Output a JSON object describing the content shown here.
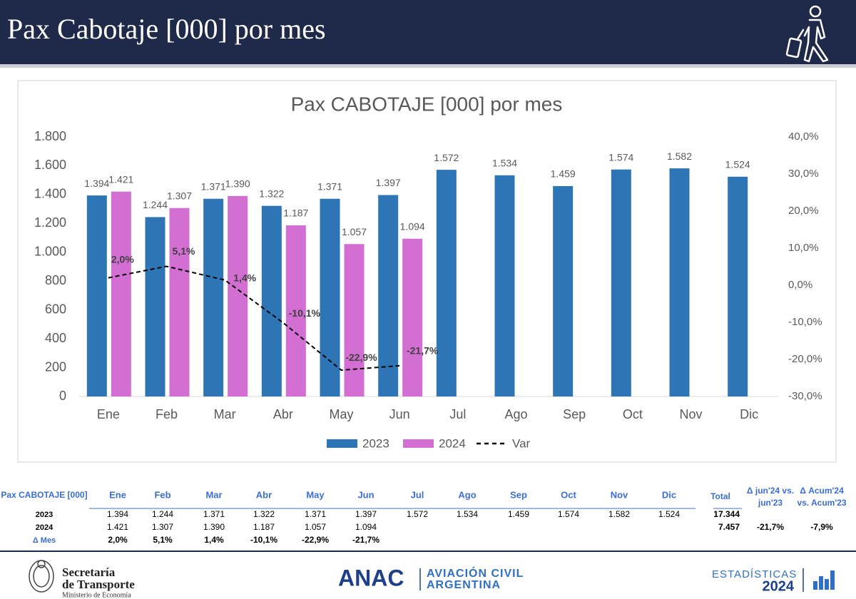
{
  "header": {
    "title": "Pax Cabotaje [000] por mes"
  },
  "chart_data": {
    "type": "bar",
    "title": "Pax CABOTAJE [000] por mes",
    "categories": [
      "Ene",
      "Feb",
      "Mar",
      "Abr",
      "May",
      "Jun",
      "Jul",
      "Ago",
      "Sep",
      "Oct",
      "Nov",
      "Dic"
    ],
    "series": [
      {
        "name": "2023",
        "color": "#2e75b6",
        "values": [
          1394,
          1244,
          1371,
          1322,
          1371,
          1397,
          1572,
          1534,
          1459,
          1574,
          1582,
          1524
        ],
        "value_labels": [
          "1.394",
          "1.244",
          "1.371",
          "1.322",
          "1.371",
          "1.397",
          "1.572",
          "1.534",
          "1.459",
          "1.574",
          "1.582",
          "1.524"
        ]
      },
      {
        "name": "2024",
        "color": "#d36fd3",
        "values": [
          1421,
          1307,
          1390,
          1187,
          1057,
          1094,
          null,
          null,
          null,
          null,
          null,
          null
        ],
        "value_labels": [
          "1.421",
          "1.307",
          "1.390",
          "1.187",
          "1.057",
          "1.094",
          null,
          null,
          null,
          null,
          null,
          null
        ]
      },
      {
        "name": "Var",
        "type": "line",
        "axis": "y2",
        "color": "#000000",
        "line_style": "dashed",
        "values": [
          2.0,
          5.1,
          1.4,
          -10.1,
          -22.9,
          -21.7,
          null,
          null,
          null,
          null,
          null,
          null
        ],
        "value_labels": [
          "2,0%",
          "5,1%",
          "1,4%",
          "-10,1%",
          "-22,9%",
          "-21,7%",
          null,
          null,
          null,
          null,
          null,
          null
        ]
      }
    ],
    "ylim": [
      0,
      1800
    ],
    "yticks": [
      0,
      200,
      400,
      600,
      800,
      {
        "value": 1000,
        "label": "1.000"
      },
      {
        "value": 1200,
        "label": "1.200"
      },
      {
        "value": 1400,
        "label": "1.400"
      },
      {
        "value": 1600,
        "label": "1.600"
      },
      {
        "value": 1800,
        "label": "1.800"
      }
    ],
    "y2lim": [
      -30,
      40
    ],
    "y2ticks": [
      {
        "value": -30,
        "label": "-30,0%"
      },
      {
        "value": -20,
        "label": "-20,0%"
      },
      {
        "value": -10,
        "label": "-10,0%"
      },
      {
        "value": 0,
        "label": "0,0%"
      },
      {
        "value": 10,
        "label": "10,0%"
      },
      {
        "value": 20,
        "label": "20,0%"
      },
      {
        "value": 30,
        "label": "30,0%"
      },
      {
        "value": 40,
        "label": "40,0%"
      }
    ],
    "grid": false,
    "legend": "bottom"
  },
  "table": {
    "corner": "Pax CABOTAJE [000]",
    "months": [
      "Ene",
      "Feb",
      "Mar",
      "Abr",
      "May",
      "Jun",
      "Jul",
      "Ago",
      "Sep",
      "Oct",
      "Nov",
      "Dic"
    ],
    "total": "Total",
    "delta_month": [
      "Δ jun'24 vs.",
      "jun'23"
    ],
    "delta_accum": [
      "Δ Acum'24",
      "vs. Acum'23"
    ],
    "rows": [
      {
        "label": "2023",
        "cells": [
          "1.394",
          "1.244",
          "1.371",
          "1.322",
          "1.371",
          "1.397",
          "1.572",
          "1.534",
          "1.459",
          "1.574",
          "1.582",
          "1.524"
        ],
        "total": "17.344"
      },
      {
        "label": "2024",
        "cells": [
          "1.421",
          "1.307",
          "1.390",
          "1.187",
          "1.057",
          "1.094"
        ],
        "total": "7.457",
        "delta_month": "-21,7%",
        "delta_accum": "-7,9%"
      },
      {
        "label": "Δ Mes",
        "cells": [
          "2,0%",
          "5,1%",
          "1,4%",
          "-10,1%",
          "-22,9%",
          "-21,7%"
        ]
      }
    ]
  },
  "footer": {
    "ministry": [
      "Secretaría",
      "de Transporte",
      "Ministerio de Economía"
    ],
    "agency": "ANAC",
    "agency_name": [
      "AVIACIÓN CIVIL",
      "ARGENTINA"
    ],
    "stats": "ESTADÍSTICAS",
    "year": "2024"
  }
}
